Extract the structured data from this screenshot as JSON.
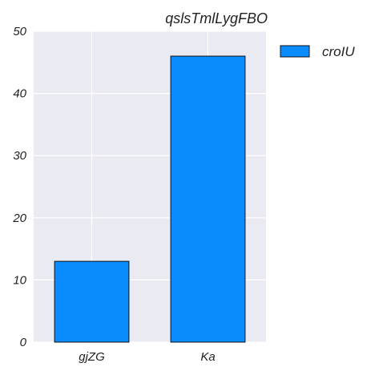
{
  "chart_data": {
    "type": "bar",
    "title": "qslsTmlLygFBO",
    "categories": [
      "gjZG",
      "Ka"
    ],
    "series": [
      {
        "name": "croIU",
        "values": [
          13,
          46
        ],
        "color": "#0a8cff"
      }
    ],
    "xlabel": "",
    "ylabel": "",
    "ylim": [
      0,
      50
    ],
    "yticks": [
      0,
      10,
      20,
      30,
      40,
      50
    ],
    "grid": true,
    "background": "#eaeaf2",
    "legend_position": "outside-top-right"
  }
}
